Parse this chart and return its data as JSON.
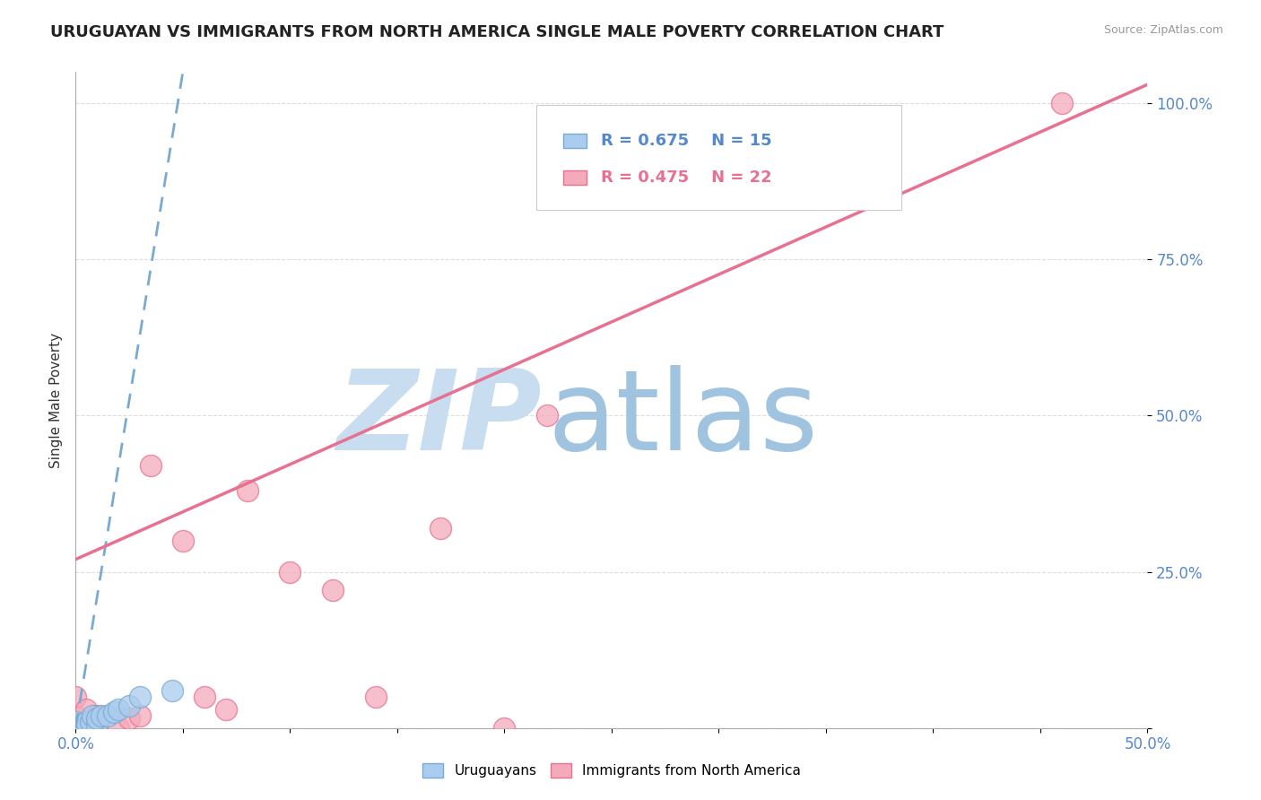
{
  "title": "URUGUAYAN VS IMMIGRANTS FROM NORTH AMERICA SINGLE MALE POVERTY CORRELATION CHART",
  "source": "Source: ZipAtlas.com",
  "ylabel": "Single Male Poverty",
  "xlim": [
    0,
    0.5
  ],
  "ylim": [
    0,
    1.05
  ],
  "xticks": [
    0.0,
    0.05,
    0.1,
    0.15,
    0.2,
    0.25,
    0.3,
    0.35,
    0.4,
    0.45,
    0.5
  ],
  "xticklabels": [
    "0.0%",
    "",
    "",
    "",
    "",
    "",
    "",
    "",
    "",
    "",
    "50.0%"
  ],
  "ytick_positions": [
    0.0,
    0.25,
    0.5,
    0.75,
    1.0
  ],
  "yticklabels": [
    "",
    "25.0%",
    "50.0%",
    "75.0%",
    "100.0%"
  ],
  "uruguayan_R": 0.675,
  "uruguayan_N": 15,
  "immigrant_R": 0.475,
  "immigrant_N": 22,
  "uruguayan_x": [
    0.0,
    0.0,
    0.003,
    0.005,
    0.007,
    0.008,
    0.01,
    0.01,
    0.012,
    0.015,
    0.018,
    0.02,
    0.025,
    0.03,
    0.045
  ],
  "uruguayan_y": [
    0.0,
    0.01,
    0.005,
    0.01,
    0.01,
    0.02,
    0.005,
    0.015,
    0.02,
    0.02,
    0.025,
    0.03,
    0.035,
    0.05,
    0.06
  ],
  "immigrant_x": [
    0.0,
    0.0,
    0.0,
    0.005,
    0.005,
    0.01,
    0.01,
    0.02,
    0.025,
    0.03,
    0.035,
    0.05,
    0.06,
    0.07,
    0.08,
    0.1,
    0.12,
    0.14,
    0.17,
    0.2,
    0.22,
    0.46
  ],
  "immigrant_y": [
    0.0,
    0.02,
    0.05,
    0.01,
    0.03,
    0.01,
    0.02,
    0.0,
    0.015,
    0.02,
    0.42,
    0.3,
    0.05,
    0.03,
    0.38,
    0.25,
    0.22,
    0.05,
    0.32,
    0.0,
    0.5,
    1.0
  ],
  "uruguayan_line_x0": 0.0,
  "uruguayan_line_y0": 0.0,
  "uruguayan_line_x1": 0.05,
  "uruguayan_line_y1": 1.05,
  "immigrant_line_x0": 0.0,
  "immigrant_line_y0": 0.27,
  "immigrant_line_x1": 0.5,
  "immigrant_line_y1": 1.03,
  "uruguayan_line_color": "#7AAAD0",
  "uruguayan_scatter_facecolor": "#AACCEE",
  "uruguayan_scatter_edgecolor": "#7AAAD0",
  "immigrant_line_color": "#E87090",
  "immigrant_scatter_facecolor": "#F4AABB",
  "immigrant_scatter_edgecolor": "#E87090",
  "watermark_zip_color": "#C8DEF0",
  "watermark_atlas_color": "#A0C4E0",
  "background_color": "#FFFFFF",
  "grid_color": "#DDDDDD",
  "tick_color": "#5588CC",
  "legend_border_color": "#CCCCCC"
}
